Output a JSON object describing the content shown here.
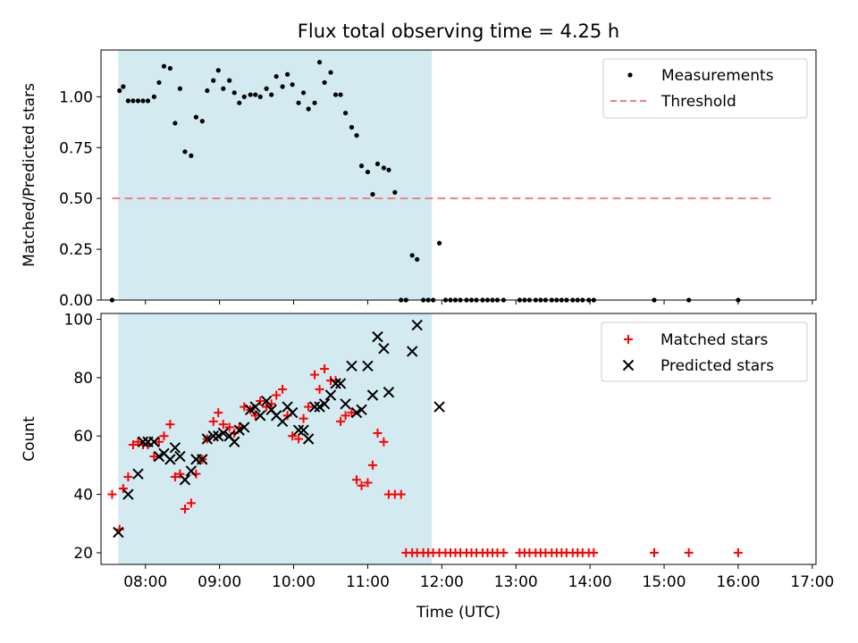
{
  "chart_data": [
    {
      "type": "scatter",
      "title": "Flux total observing time = 4.25 h",
      "xlabel": "",
      "ylabel": "Matched/Predicted stars",
      "x_tick_labels": [
        "08:00",
        "09:00",
        "10:00",
        "11:00",
        "12:00",
        "13:00",
        "14:00",
        "15:00",
        "16:00",
        "17:00"
      ],
      "y_tick_labels": [
        "0.00",
        "0.25",
        "0.50",
        "0.75",
        "1.00"
      ],
      "ylim": [
        0,
        1.23
      ],
      "xlim": [
        "07:24",
        "17:03"
      ],
      "grid": false,
      "legend": "top-right",
      "shaded_span": {
        "start": "07:38",
        "end": "11:52",
        "color": "#d3eaf0"
      },
      "threshold": {
        "name": "Threshold",
        "value": 0.5,
        "color": "#f08080",
        "start": "07:33",
        "end": "16:29"
      },
      "series": [
        {
          "name": "Measurements",
          "color": "#000000",
          "points": [
            [
              "07:33",
              0.0
            ],
            [
              "07:39",
              1.03
            ],
            [
              "07:42",
              1.05
            ],
            [
              "07:46",
              0.98
            ],
            [
              "07:50",
              0.98
            ],
            [
              "07:54",
              0.98
            ],
            [
              "07:58",
              0.98
            ],
            [
              "08:02",
              0.98
            ],
            [
              "08:07",
              1.0
            ],
            [
              "08:11",
              1.07
            ],
            [
              "08:15",
              1.15
            ],
            [
              "08:20",
              1.14
            ],
            [
              "08:24",
              0.87
            ],
            [
              "08:28",
              1.04
            ],
            [
              "08:32",
              0.73
            ],
            [
              "08:37",
              0.71
            ],
            [
              "08:41",
              0.9
            ],
            [
              "08:46",
              0.88
            ],
            [
              "08:50",
              1.03
            ],
            [
              "08:55",
              1.08
            ],
            [
              "08:59",
              1.13
            ],
            [
              "09:03",
              1.04
            ],
            [
              "09:08",
              1.08
            ],
            [
              "09:12",
              1.02
            ],
            [
              "09:16",
              0.97
            ],
            [
              "09:20",
              1.0
            ],
            [
              "09:25",
              1.01
            ],
            [
              "09:29",
              1.01
            ],
            [
              "09:33",
              1.0
            ],
            [
              "09:38",
              1.04
            ],
            [
              "09:42",
              1.01
            ],
            [
              "09:46",
              1.1
            ],
            [
              "09:51",
              1.05
            ],
            [
              "09:55",
              1.11
            ],
            [
              "09:59",
              1.06
            ],
            [
              "10:04",
              0.97
            ],
            [
              "10:08",
              1.02
            ],
            [
              "10:12",
              0.94
            ],
            [
              "10:17",
              0.97
            ],
            [
              "10:21",
              1.17
            ],
            [
              "10:25",
              1.07
            ],
            [
              "10:30",
              1.12
            ],
            [
              "10:34",
              1.01
            ],
            [
              "10:38",
              1.01
            ],
            [
              "10:42",
              0.92
            ],
            [
              "10:47",
              0.85
            ],
            [
              "10:51",
              0.81
            ],
            [
              "10:55",
              0.66
            ],
            [
              "11:00",
              0.63
            ],
            [
              "11:04",
              0.52
            ],
            [
              "11:08",
              0.67
            ],
            [
              "11:13",
              0.65
            ],
            [
              "11:17",
              0.64
            ],
            [
              "11:22",
              0.53
            ],
            [
              "11:27",
              0.0
            ],
            [
              "11:31",
              0.0
            ],
            [
              "11:36",
              0.22
            ],
            [
              "11:40",
              0.2
            ],
            [
              "11:45",
              0.0
            ],
            [
              "11:49",
              0.0
            ],
            [
              "11:53",
              0.0
            ],
            [
              "11:58",
              0.28
            ],
            [
              "12:03",
              0.0
            ],
            [
              "12:07",
              0.0
            ],
            [
              "12:11",
              0.0
            ],
            [
              "12:15",
              0.0
            ],
            [
              "12:20",
              0.0
            ],
            [
              "12:24",
              0.0
            ],
            [
              "12:28",
              0.0
            ],
            [
              "12:33",
              0.0
            ],
            [
              "12:37",
              0.0
            ],
            [
              "12:41",
              0.0
            ],
            [
              "12:45",
              0.0
            ],
            [
              "12:50",
              0.0
            ],
            [
              "13:03",
              0.0
            ],
            [
              "13:07",
              0.0
            ],
            [
              "13:11",
              0.0
            ],
            [
              "13:16",
              0.0
            ],
            [
              "13:20",
              0.0
            ],
            [
              "13:24",
              0.0
            ],
            [
              "13:29",
              0.0
            ],
            [
              "13:33",
              0.0
            ],
            [
              "13:37",
              0.0
            ],
            [
              "13:41",
              0.0
            ],
            [
              "13:46",
              0.0
            ],
            [
              "13:50",
              0.0
            ],
            [
              "13:54",
              0.0
            ],
            [
              "13:59",
              0.0
            ],
            [
              "14:03",
              0.0
            ],
            [
              "14:52",
              0.0
            ],
            [
              "15:20",
              0.0
            ],
            [
              "16:00",
              0.0
            ]
          ]
        }
      ]
    },
    {
      "type": "scatter",
      "title": "",
      "xlabel": "Time (UTC)",
      "ylabel": "Count",
      "x_tick_labels": [
        "08:00",
        "09:00",
        "10:00",
        "11:00",
        "12:00",
        "13:00",
        "14:00",
        "15:00",
        "16:00",
        "17:00"
      ],
      "y_tick_labels": [
        "20",
        "40",
        "60",
        "80",
        "100"
      ],
      "ylim": [
        16,
        102
      ],
      "xlim": [
        "07:24",
        "17:03"
      ],
      "grid": false,
      "legend": "top-right",
      "shaded_span": {
        "start": "07:38",
        "end": "11:52",
        "color": "#d3eaf0"
      },
      "series": [
        {
          "name": "Matched stars",
          "marker": "plus",
          "color": "#ff0000",
          "points": [
            [
              "07:33",
              40
            ],
            [
              "07:39",
              28
            ],
            [
              "07:42",
              42
            ],
            [
              "07:46",
              46
            ],
            [
              "07:50",
              57
            ],
            [
              "07:54",
              58
            ],
            [
              "07:58",
              57
            ],
            [
              "08:02",
              57
            ],
            [
              "08:07",
              53
            ],
            [
              "08:11",
              58
            ],
            [
              "08:15",
              60
            ],
            [
              "08:20",
              64
            ],
            [
              "08:24",
              46
            ],
            [
              "08:28",
              47
            ],
            [
              "08:32",
              35
            ],
            [
              "08:37",
              37
            ],
            [
              "08:41",
              47
            ],
            [
              "08:46",
              52
            ],
            [
              "08:50",
              59
            ],
            [
              "08:55",
              65
            ],
            [
              "08:59",
              68
            ],
            [
              "09:03",
              64
            ],
            [
              "09:08",
              63
            ],
            [
              "09:12",
              61
            ],
            [
              "09:16",
              63
            ],
            [
              "09:20",
              70
            ],
            [
              "09:25",
              69
            ],
            [
              "09:29",
              67
            ],
            [
              "09:33",
              72
            ],
            [
              "09:38",
              70
            ],
            [
              "09:42",
              71
            ],
            [
              "09:46",
              74
            ],
            [
              "09:51",
              76
            ],
            [
              "09:55",
              67
            ],
            [
              "09:59",
              60
            ],
            [
              "10:04",
              59
            ],
            [
              "10:08",
              66
            ],
            [
              "10:12",
              70
            ],
            [
              "10:17",
              81
            ],
            [
              "10:21",
              76
            ],
            [
              "10:25",
              83
            ],
            [
              "10:30",
              79
            ],
            [
              "10:34",
              79
            ],
            [
              "10:38",
              65
            ],
            [
              "10:42",
              67
            ],
            [
              "10:47",
              68
            ],
            [
              "10:51",
              45
            ],
            [
              "10:55",
              43
            ],
            [
              "11:00",
              44
            ],
            [
              "11:04",
              50
            ],
            [
              "11:08",
              61
            ],
            [
              "11:13",
              58
            ],
            [
              "11:17",
              40
            ],
            [
              "11:22",
              40
            ],
            [
              "11:27",
              40
            ],
            [
              "11:31",
              20
            ],
            [
              "11:36",
              20
            ],
            [
              "11:40",
              20
            ],
            [
              "11:45",
              20
            ],
            [
              "11:49",
              20
            ],
            [
              "11:53",
              20
            ],
            [
              "11:58",
              20
            ],
            [
              "12:03",
              20
            ],
            [
              "12:07",
              20
            ],
            [
              "12:11",
              20
            ],
            [
              "12:15",
              20
            ],
            [
              "12:20",
              20
            ],
            [
              "12:24",
              20
            ],
            [
              "12:28",
              20
            ],
            [
              "12:33",
              20
            ],
            [
              "12:37",
              20
            ],
            [
              "12:41",
              20
            ],
            [
              "12:45",
              20
            ],
            [
              "12:50",
              20
            ],
            [
              "13:03",
              20
            ],
            [
              "13:07",
              20
            ],
            [
              "13:11",
              20
            ],
            [
              "13:16",
              20
            ],
            [
              "13:20",
              20
            ],
            [
              "13:24",
              20
            ],
            [
              "13:29",
              20
            ],
            [
              "13:33",
              20
            ],
            [
              "13:37",
              20
            ],
            [
              "13:41",
              20
            ],
            [
              "13:46",
              20
            ],
            [
              "13:50",
              20
            ],
            [
              "13:54",
              20
            ],
            [
              "13:59",
              20
            ],
            [
              "14:03",
              20
            ],
            [
              "14:52",
              20
            ],
            [
              "15:20",
              20
            ],
            [
              "16:00",
              20
            ]
          ]
        },
        {
          "name": "Predicted stars",
          "marker": "x",
          "color": "#000000",
          "points": [
            [
              "07:38",
              27
            ],
            [
              "07:46",
              40
            ],
            [
              "07:54",
              47
            ],
            [
              "07:58",
              58
            ],
            [
              "08:02",
              58
            ],
            [
              "08:07",
              58
            ],
            [
              "08:11",
              53
            ],
            [
              "08:15",
              54
            ],
            [
              "08:20",
              52
            ],
            [
              "08:24",
              56
            ],
            [
              "08:28",
              53
            ],
            [
              "08:32",
              45
            ],
            [
              "08:37",
              48
            ],
            [
              "08:41",
              52
            ],
            [
              "08:46",
              52
            ],
            [
              "08:50",
              59
            ],
            [
              "08:55",
              60
            ],
            [
              "08:59",
              60
            ],
            [
              "09:03",
              61
            ],
            [
              "09:08",
              60
            ],
            [
              "09:12",
              58
            ],
            [
              "09:16",
              62
            ],
            [
              "09:20",
              63
            ],
            [
              "09:25",
              69
            ],
            [
              "09:29",
              70
            ],
            [
              "09:33",
              67
            ],
            [
              "09:38",
              72
            ],
            [
              "09:42",
              69
            ],
            [
              "09:46",
              67
            ],
            [
              "09:51",
              65
            ],
            [
              "09:55",
              70
            ],
            [
              "09:59",
              68
            ],
            [
              "10:04",
              62
            ],
            [
              "10:08",
              62
            ],
            [
              "10:12",
              59
            ],
            [
              "10:17",
              70
            ],
            [
              "10:21",
              70
            ],
            [
              "10:25",
              71
            ],
            [
              "10:30",
              74
            ],
            [
              "10:34",
              78
            ],
            [
              "10:38",
              78
            ],
            [
              "10:42",
              71
            ],
            [
              "10:47",
              84
            ],
            [
              "10:51",
              68
            ],
            [
              "10:55",
              69
            ],
            [
              "11:00",
              84
            ],
            [
              "11:04",
              74
            ],
            [
              "11:08",
              94
            ],
            [
              "11:13",
              90
            ],
            [
              "11:17",
              75
            ],
            [
              "11:36",
              89
            ],
            [
              "11:40",
              98
            ],
            [
              "11:58",
              70
            ]
          ]
        }
      ]
    }
  ]
}
